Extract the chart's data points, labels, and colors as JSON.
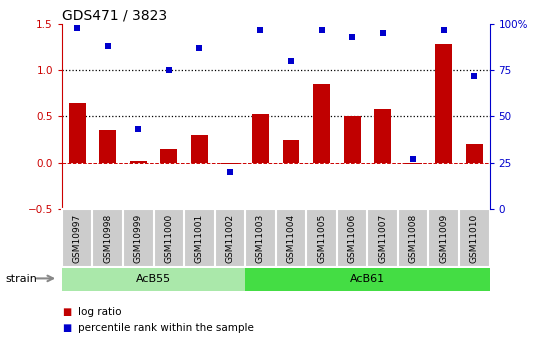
{
  "title": "GDS471 / 3823",
  "categories": [
    "GSM10997",
    "GSM10998",
    "GSM10999",
    "GSM11000",
    "GSM11001",
    "GSM11002",
    "GSM11003",
    "GSM11004",
    "GSM11005",
    "GSM11006",
    "GSM11007",
    "GSM11008",
    "GSM11009",
    "GSM11010"
  ],
  "log_ratio": [
    0.65,
    0.35,
    0.02,
    0.15,
    0.3,
    -0.02,
    0.53,
    0.25,
    0.85,
    0.5,
    0.58,
    -0.02,
    1.28,
    0.2
  ],
  "percentile_rank": [
    98,
    88,
    43,
    75,
    87,
    20,
    97,
    80,
    97,
    93,
    95,
    27,
    97,
    72
  ],
  "bar_color": "#c00000",
  "dot_color": "#0000cc",
  "ylim_left": [
    -0.5,
    1.5
  ],
  "ylim_right": [
    0,
    100
  ],
  "yticks_left": [
    -0.5,
    0.0,
    0.5,
    1.0,
    1.5
  ],
  "yticks_right": [
    0,
    25,
    50,
    75,
    100
  ],
  "strain_groups": [
    {
      "label": "AcB55",
      "start": 0,
      "end": 5,
      "color": "#aae8aa"
    },
    {
      "label": "AcB61",
      "start": 6,
      "end": 13,
      "color": "#44dd44"
    }
  ],
  "strain_label": "strain",
  "legend_bar_label": "log ratio",
  "legend_dot_label": "percentile rank within the sample",
  "bg_color": "#ffffff",
  "tick_color_left": "#cc0000",
  "tick_color_right": "#0000cc",
  "label_bg_color": "#cccccc",
  "title_fontsize": 10,
  "axis_fontsize": 7.5,
  "cat_fontsize": 6.5
}
